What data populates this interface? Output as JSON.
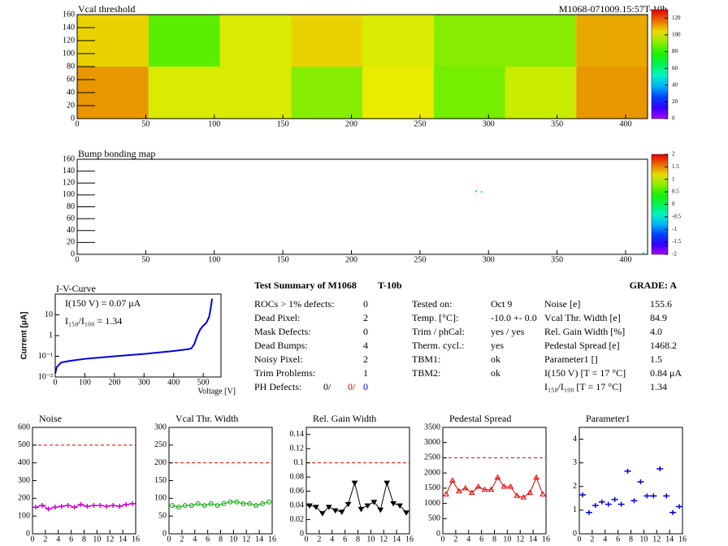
{
  "chart_data": [
    {
      "type": "heatmap",
      "title": "Vcal threshold",
      "run_label": "M1068-071009.15:57T-10b",
      "xbins": [
        0,
        52,
        104,
        156,
        208,
        260,
        312,
        364,
        416
      ],
      "ybins": [
        0,
        80,
        160
      ],
      "values": [
        [
          112,
          100,
          100,
          90,
          102,
          88,
          98,
          112
        ],
        [
          105,
          85,
          100,
          105,
          100,
          90,
          90,
          110
        ]
      ],
      "xlim": [
        0,
        416
      ],
      "ylim": [
        0,
        160
      ],
      "xticks": [
        0,
        50,
        100,
        150,
        200,
        250,
        300,
        350,
        400
      ],
      "yticks": [
        0,
        20,
        40,
        60,
        80,
        100,
        120,
        140,
        160
      ],
      "zlim": [
        0,
        130
      ],
      "zticks": [
        0,
        20,
        40,
        60,
        80,
        100,
        120
      ]
    },
    {
      "type": "scatter",
      "title": "Bump bonding map",
      "x": [
        291,
        295,
        413
      ],
      "y": [
        106,
        105,
        2
      ],
      "values": [
        0.1,
        -0.3,
        -0.2
      ],
      "xlim": [
        0,
        416
      ],
      "ylim": [
        0,
        160
      ],
      "xticks": [
        0,
        50,
        100,
        150,
        200,
        250,
        300,
        350,
        400
      ],
      "yticks": [
        0,
        20,
        40,
        60,
        80,
        100,
        120,
        140,
        160
      ],
      "zlim": [
        -2,
        2
      ],
      "zticks": [
        -2,
        -1.5,
        -1,
        -0.5,
        0,
        0.5,
        1,
        1.5,
        2
      ]
    },
    {
      "type": "line",
      "title": "I-V-Curve",
      "xlabel": "Voltage [V]",
      "ylabel": "Current [μA]",
      "log_y": true,
      "annotations": [
        "I(150 V) = 0.07 μA",
        "I₁₅₀/I₁₀₀ =  1.34"
      ],
      "x": [
        0,
        5,
        20,
        50,
        100,
        200,
        300,
        400,
        450,
        460,
        470,
        480,
        490,
        500,
        510,
        520,
        525,
        530
      ],
      "values": [
        0.015,
        0.03,
        0.05,
        0.06,
        0.075,
        0.1,
        0.13,
        0.18,
        0.22,
        0.24,
        0.4,
        1,
        2,
        3,
        4,
        8,
        20,
        60
      ],
      "color": "#0000dd",
      "line": true,
      "xlim": [
        0,
        560
      ],
      "ylim": [
        0.01,
        100
      ],
      "xticks": [
        0,
        100,
        200,
        300,
        400,
        500
      ],
      "yticks": [
        {
          "value": 0.01,
          "label": "10⁻²"
        },
        {
          "value": 0.1,
          "label": "10⁻¹"
        },
        1,
        10
      ]
    },
    {
      "type": "line",
      "title": "Noise",
      "x": [
        0.5,
        1.5,
        2.5,
        3.5,
        4.5,
        5.5,
        6.5,
        7.5,
        8.5,
        9.5,
        10.5,
        11.5,
        12.5,
        13.5,
        14.5,
        15.5
      ],
      "values": [
        150,
        160,
        140,
        150,
        155,
        160,
        150,
        165,
        155,
        160,
        160,
        155,
        160,
        155,
        165,
        170
      ],
      "color": "#cc00cc",
      "marker": "cross",
      "line": true,
      "reference_line": 500,
      "xlim": [
        0,
        16
      ],
      "ylim": [
        0,
        600
      ],
      "xticks": [
        0,
        2,
        4,
        6,
        8,
        10,
        12,
        14,
        16
      ],
      "yticks": [
        0,
        100,
        200,
        300,
        400,
        500,
        600
      ]
    },
    {
      "type": "line",
      "title": "Vcal Thr. Width",
      "x": [
        0.5,
        1.5,
        2.5,
        3.5,
        4.5,
        5.5,
        6.5,
        7.5,
        8.5,
        9.5,
        10.5,
        11.5,
        12.5,
        13.5,
        14.5,
        15.5
      ],
      "values": [
        80,
        75,
        80,
        80,
        85,
        80,
        85,
        80,
        85,
        90,
        90,
        85,
        85,
        80,
        85,
        90
      ],
      "color": "#00aa00",
      "marker": "circle",
      "line": true,
      "reference_line": 200,
      "xlim": [
        0,
        16
      ],
      "ylim": [
        0,
        300
      ],
      "xticks": [
        0,
        2,
        4,
        6,
        8,
        10,
        12,
        14,
        16
      ],
      "yticks": [
        0,
        50,
        100,
        150,
        200,
        250,
        300
      ]
    },
    {
      "type": "line",
      "title": "Rel. Gain Width",
      "x": [
        0.5,
        1.5,
        2.5,
        3.5,
        4.5,
        5.5,
        6.5,
        7.5,
        8.5,
        9.5,
        10.5,
        11.5,
        12.5,
        13.5,
        14.5,
        15.5
      ],
      "values": [
        0.04,
        0.038,
        0.029,
        0.038,
        0.033,
        0.031,
        0.042,
        0.072,
        0.035,
        0.04,
        0.045,
        0.034,
        0.072,
        0.043,
        0.04,
        0.03
      ],
      "color": "#000000",
      "marker": "triangle-down",
      "line": true,
      "reference_line": 0.1,
      "xlim": [
        0,
        16
      ],
      "ylim": [
        0,
        0.15
      ],
      "xticks": [
        0,
        2,
        4,
        6,
        8,
        10,
        12,
        14,
        16
      ],
      "yticks": [
        0,
        0.02,
        0.04,
        0.06,
        0.08,
        0.1,
        0.12,
        0.14
      ]
    },
    {
      "type": "line",
      "title": "Pedestal Spread",
      "x": [
        0.5,
        1.5,
        2.5,
        3.5,
        4.5,
        5.5,
        6.5,
        7.5,
        8.5,
        9.5,
        10.5,
        11.5,
        12.5,
        13.5,
        14.5,
        15.5
      ],
      "values": [
        1300,
        1750,
        1400,
        1500,
        1350,
        1550,
        1450,
        1450,
        1850,
        1550,
        1550,
        1250,
        1200,
        1350,
        1850,
        1300
      ],
      "color": "#dd0000",
      "marker": "triangle-up",
      "line": true,
      "reference_line": 2500,
      "xlim": [
        0,
        16
      ],
      "ylim": [
        0,
        3500
      ],
      "xticks": [
        0,
        2,
        4,
        6,
        8,
        10,
        12,
        14,
        16
      ],
      "yticks": [
        0,
        500,
        1000,
        1500,
        2000,
        2500,
        3000,
        3500
      ]
    },
    {
      "type": "line",
      "title": "Parameter1",
      "x": [
        0.5,
        1.5,
        2.5,
        3.5,
        4.5,
        5.5,
        6.5,
        7.5,
        8.5,
        9.5,
        10.5,
        11.5,
        12.5,
        13.5,
        14.5,
        15.5
      ],
      "values": [
        1.65,
        0.9,
        1.2,
        1.35,
        1.25,
        1.45,
        1.25,
        2.65,
        1.4,
        2.2,
        1.6,
        1.6,
        2.75,
        1.6,
        0.9,
        1.15
      ],
      "color": "#0000dd",
      "marker": "cross",
      "line": false,
      "xlim": [
        0,
        16
      ],
      "ylim": [
        0,
        4.5
      ],
      "xticks": [
        0,
        2,
        4,
        6,
        8,
        10,
        12,
        14,
        16
      ],
      "yticks": [
        0,
        1,
        2,
        3,
        4
      ]
    }
  ],
  "summary": {
    "title": "Test Summary of M1068",
    "module_type": "T-10b",
    "grade": "GRADE:  A",
    "defects": [
      [
        "ROCs > 1% defects:",
        "0"
      ],
      [
        "Dead Pixel:",
        "2"
      ],
      [
        "Mask Defects:",
        "0"
      ],
      [
        "Dead Bumps:",
        "4"
      ],
      [
        "Noisy Pixel:",
        "2"
      ],
      [
        "Trim Problems:",
        "1"
      ]
    ],
    "ph_defects": {
      "label": "PH Defects:",
      "values": [
        "0/",
        "0/",
        "0"
      ]
    },
    "conditions": [
      [
        "Tested on:",
        "Oct 9"
      ],
      [
        "Temp. [°C]:",
        "-10.0 +- 0.0"
      ],
      [
        "Trim / phCal:",
        "yes / yes"
      ],
      [
        "Therm. cycl.:",
        "yes"
      ],
      [
        "TBM1:",
        "ok"
      ],
      [
        "TBM2:",
        "ok"
      ]
    ],
    "results": [
      [
        "Noise [e]",
        "155.6"
      ],
      [
        "Vcal Thr. Width [e]",
        "84.9"
      ],
      [
        "Rel. Gain Width [%]",
        "4.0"
      ],
      [
        "Pedestal Spread [e]",
        "1468.2"
      ],
      [
        "Parameter1 []",
        "1.5"
      ],
      [
        "I(150 V) [T = 17 °C]",
        "0.84 μA"
      ],
      [
        "I₁₅₀/I₁₀₀  [T = 17 °C]",
        "1.34"
      ]
    ]
  }
}
